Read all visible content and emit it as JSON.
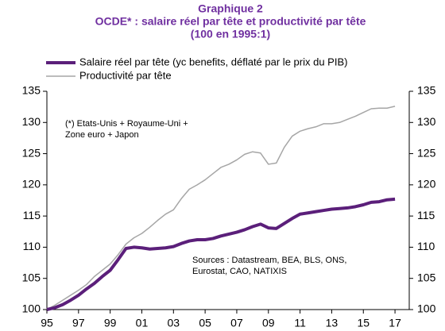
{
  "chart_data": {
    "type": "line",
    "title": [
      "Graphique 2",
      "OCDE* : salaire réel par tête et productivité par tête",
      "(100 en 1995:1)"
    ],
    "annotations": [
      [
        "(*) Etats-Unis + Royaume-Uni +",
        "Zone euro + Japon"
      ],
      [
        "Sources : Datastream, BEA, BLS, ONS,",
        "Eurostat, CAO, NATIXIS"
      ]
    ],
    "x": [
      1995,
      1995.5,
      1996,
      1996.5,
      1997,
      1997.5,
      1998,
      1998.5,
      1999,
      1999.5,
      2000,
      2000.5,
      2001,
      2001.5,
      2002,
      2002.5,
      2003,
      2003.5,
      2004,
      2004.5,
      2005,
      2005.5,
      2006,
      2006.5,
      2007,
      2007.5,
      2008,
      2008.5,
      2009,
      2009.5,
      2010,
      2010.5,
      2011,
      2011.5,
      2012,
      2012.5,
      2013,
      2013.5,
      2014,
      2014.5,
      2015,
      2015.5,
      2016,
      2016.5,
      2017
    ],
    "series": [
      {
        "name": "Salaire réel par tête (yc benefits, déflaté par le prix du PIB)",
        "color": "#5b1f7a",
        "width": 4,
        "values": [
          100,
          100.3,
          100.8,
          101.5,
          102.3,
          103.3,
          104.2,
          105.3,
          106.3,
          108,
          109.8,
          110,
          109.9,
          109.7,
          109.8,
          109.9,
          110.1,
          110.6,
          111,
          111.2,
          111.2,
          111.4,
          111.8,
          112.1,
          112.4,
          112.8,
          113.3,
          113.7,
          113.1,
          113,
          113.8,
          114.6,
          115.3,
          115.5,
          115.7,
          115.9,
          116.1,
          116.2,
          116.3,
          116.5,
          116.8,
          117.2,
          117.3,
          117.6,
          117.7
        ]
      },
      {
        "name": "Productivité par tête",
        "color": "#a6a6a6",
        "width": 1.5,
        "values": [
          100,
          100.7,
          101.5,
          102.3,
          103.1,
          104,
          105.3,
          106.3,
          107.3,
          108.8,
          110.5,
          111.5,
          112.2,
          113.2,
          114.3,
          115.3,
          116,
          117.8,
          119.3,
          120,
          120.8,
          121.8,
          122.8,
          123.3,
          124,
          124.9,
          125.3,
          125.1,
          123.3,
          123.5,
          126,
          127.8,
          128.6,
          129,
          129.3,
          129.8,
          129.8,
          130,
          130.5,
          131,
          131.6,
          132.2,
          132.3,
          132.3,
          132.6
        ]
      }
    ],
    "xlim": [
      1995,
      2017.9
    ],
    "xticks": [
      {
        "value": 1995,
        "label": "95"
      },
      {
        "value": 1997,
        "label": "97"
      },
      {
        "value": 1999,
        "label": "99"
      },
      {
        "value": 2001,
        "label": "01"
      },
      {
        "value": 2003,
        "label": "03"
      },
      {
        "value": 2005,
        "label": "05"
      },
      {
        "value": 2007,
        "label": "07"
      },
      {
        "value": 2009,
        "label": "09"
      },
      {
        "value": 2011,
        "label": "11"
      },
      {
        "value": 2013,
        "label": "13"
      },
      {
        "value": 2015,
        "label": "15"
      },
      {
        "value": 2017,
        "label": "17"
      }
    ],
    "ylim": [
      100,
      135
    ],
    "yticks": [
      100,
      105,
      110,
      115,
      120,
      125,
      130,
      135
    ],
    "y2lim": [
      100,
      135
    ],
    "y2ticks": [
      100,
      105,
      110,
      115,
      120,
      125,
      130,
      135
    ]
  }
}
